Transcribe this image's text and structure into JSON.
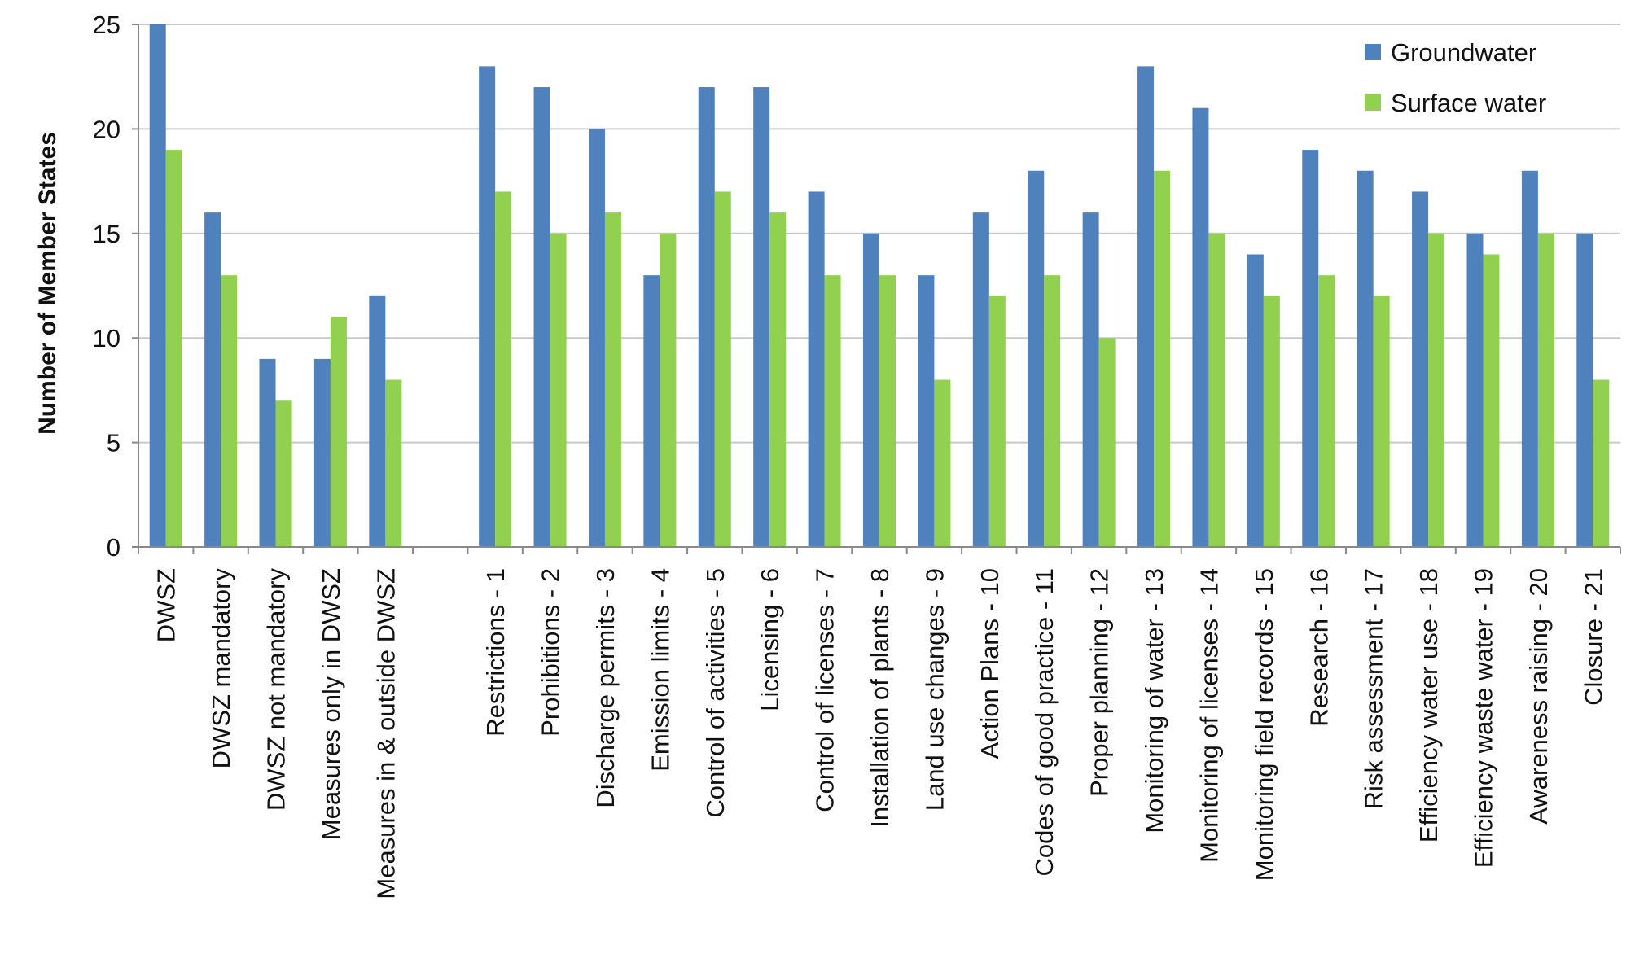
{
  "chart_data": {
    "type": "bar",
    "ylabel": "Number of Member States",
    "xlabel": "",
    "ylim": [
      0,
      25
    ],
    "yticks": [
      0,
      5,
      10,
      15,
      20,
      25
    ],
    "grid": "horizontal",
    "legend_position": "top-right",
    "categories": [
      "DWSZ",
      "DWSZ mandatory",
      "DWSZ not mandatory",
      "Measures only in DWSZ",
      "Measures in & outside DWSZ",
      "",
      "Restrictions - 1",
      "Prohibitions - 2",
      "Discharge permits - 3",
      "Emission limits - 4",
      "Control of activities - 5",
      "Licensing - 6",
      "Control of licenses - 7",
      "Installation of plants - 8",
      "Land use changes - 9",
      "Action Plans - 10",
      "Codes of good practice - 11",
      "Proper planning - 12",
      "Monitoring of water - 13",
      "Monitoring of licenses - 14",
      "Monitoring field records - 15",
      "Research - 16",
      "Risk assessment - 17",
      "Efficiency water use - 18",
      "Efficiency waste water - 19",
      "Awareness raising - 20",
      "Closure - 21"
    ],
    "series": [
      {
        "name": "Groundwater",
        "color": "#4F81BD",
        "values": [
          25,
          16,
          9,
          9,
          12,
          null,
          23,
          22,
          20,
          13,
          22,
          22,
          17,
          15,
          13,
          16,
          18,
          16,
          23,
          21,
          14,
          19,
          18,
          17,
          15,
          18,
          15
        ]
      },
      {
        "name": "Surface water",
        "color": "#92D050",
        "values": [
          19,
          13,
          7,
          11,
          8,
          null,
          17,
          15,
          16,
          15,
          17,
          16,
          13,
          13,
          8,
          12,
          13,
          10,
          18,
          15,
          12,
          13,
          12,
          15,
          14,
          15,
          8
        ]
      }
    ]
  }
}
